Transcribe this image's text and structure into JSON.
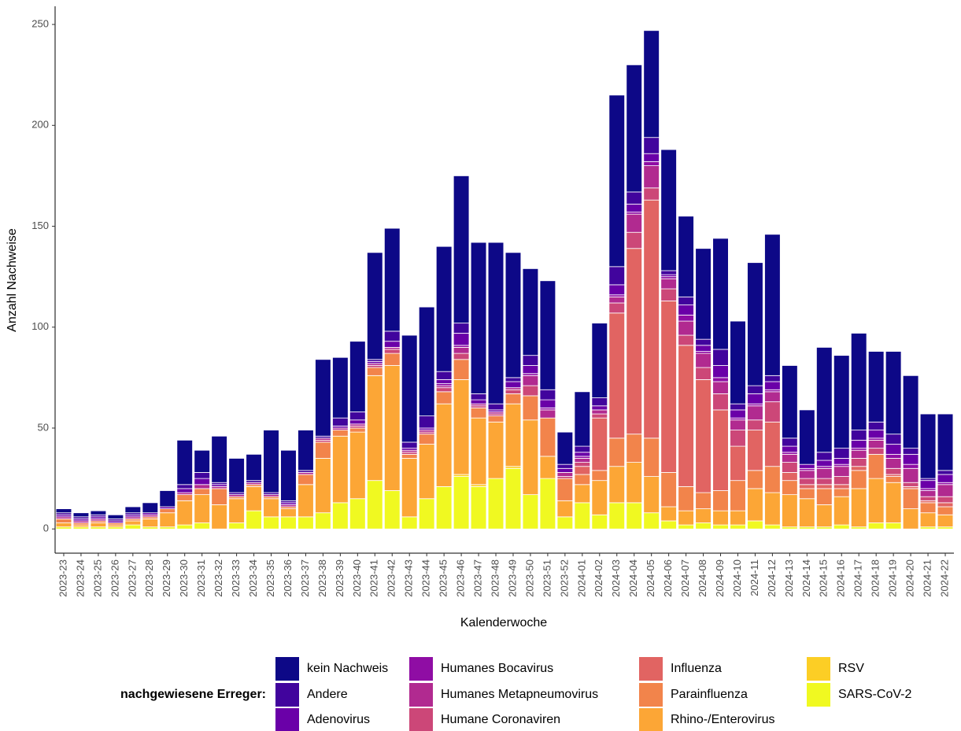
{
  "chart_data": {
    "type": "stacked-bar",
    "x_label": "Kalenderwoche",
    "y_label": "Anzahl Nachweise",
    "legend_title": "nachgewiesene Erreger:",
    "legend_position": "bottom",
    "categories": [
      "2023-23",
      "2023-24",
      "2023-25",
      "2023-26",
      "2023-27",
      "2023-28",
      "2023-29",
      "2023-30",
      "2023-31",
      "2023-32",
      "2023-33",
      "2023-34",
      "2023-35",
      "2023-36",
      "2023-37",
      "2023-38",
      "2023-39",
      "2023-40",
      "2023-41",
      "2023-42",
      "2023-43",
      "2023-44",
      "2023-45",
      "2023-46",
      "2023-47",
      "2023-48",
      "2023-49",
      "2023-50",
      "2023-51",
      "2023-52",
      "2024-01",
      "2024-02",
      "2024-03",
      "2024-04",
      "2024-05",
      "2024-06",
      "2024-07",
      "2024-08",
      "2024-09",
      "2024-10",
      "2024-11",
      "2024-12",
      "2024-13",
      "2024-14",
      "2024-15",
      "2024-16",
      "2024-17",
      "2024-18",
      "2024-19",
      "2024-20",
      "2024-21",
      "2024-22"
    ],
    "ylim": [
      -12,
      259
    ],
    "yticks": [
      0,
      50,
      100,
      150,
      200,
      250
    ],
    "series": [
      {
        "name": "kein Nachweis",
        "color": "#0D0887",
        "values": [
          2,
          2,
          2,
          2,
          3,
          5,
          8,
          22,
          11,
          23,
          17,
          13,
          31,
          25,
          20,
          38,
          30,
          35,
          53,
          51,
          53,
          54,
          62,
          73,
          75,
          80,
          62,
          43,
          54,
          16,
          27,
          37,
          85,
          63,
          53,
          60,
          40,
          45,
          55,
          41,
          61,
          70,
          36,
          27,
          52,
          46,
          48,
          35,
          41,
          36,
          32,
          28
        ]
      },
      {
        "name": "Andere",
        "color": "#41049D",
        "values": [
          1,
          1,
          1,
          1,
          1,
          0,
          0,
          2,
          3,
          1,
          1,
          1,
          1,
          1,
          1,
          1,
          4,
          4,
          1,
          5,
          3,
          6,
          4,
          5,
          3,
          3,
          2,
          5,
          5,
          2,
          3,
          4,
          9,
          6,
          8,
          2,
          4,
          3,
          8,
          3,
          4,
          3,
          4,
          0,
          4,
          5,
          5,
          4,
          5,
          3,
          1,
          2
        ]
      },
      {
        "name": "Adenovirus",
        "color": "#6A00A8",
        "values": [
          1,
          1,
          1,
          1,
          1,
          1,
          1,
          2,
          3,
          1,
          0,
          0,
          0,
          1,
          0,
          0,
          1,
          2,
          1,
          3,
          1,
          1,
          2,
          6,
          2,
          1,
          3,
          4,
          4,
          2,
          2,
          2,
          5,
          4,
          4,
          1,
          5,
          3,
          6,
          4,
          5,
          4,
          3,
          2,
          3,
          3,
          4,
          4,
          5,
          5,
          4,
          4
        ]
      },
      {
        "name": "Humanes Bocavirus",
        "color": "#8F0DA4",
        "values": [
          0,
          0,
          0,
          0,
          0,
          0,
          0,
          0,
          0,
          0,
          0,
          0,
          0,
          0,
          0,
          0,
          0,
          0,
          0,
          0,
          0,
          0,
          1,
          1,
          0,
          0,
          0,
          1,
          1,
          0,
          1,
          0,
          1,
          1,
          2,
          1,
          3,
          1,
          2,
          1,
          1,
          1,
          1,
          1,
          1,
          1,
          1,
          1,
          2,
          2,
          1,
          1
        ]
      },
      {
        "name": "Humanes Metapneumovirus",
        "color": "#B12A90",
        "values": [
          1,
          1,
          1,
          0,
          1,
          1,
          0,
          1,
          2,
          1,
          1,
          1,
          1,
          1,
          1,
          1,
          1,
          1,
          1,
          1,
          1,
          1,
          1,
          3,
          1,
          1,
          1,
          5,
          4,
          2,
          2,
          2,
          3,
          9,
          11,
          5,
          7,
          7,
          6,
          5,
          7,
          5,
          4,
          4,
          5,
          5,
          4,
          4,
          5,
          7,
          3,
          6
        ]
      },
      {
        "name": "Humane Coronaviren",
        "color": "#CC4778",
        "values": [
          0,
          0,
          0,
          0,
          0,
          0,
          0,
          0,
          0,
          0,
          0,
          0,
          0,
          0,
          0,
          1,
          0,
          1,
          1,
          2,
          1,
          1,
          2,
          3,
          1,
          1,
          2,
          5,
          0,
          1,
          2,
          2,
          5,
          8,
          6,
          6,
          5,
          6,
          8,
          8,
          5,
          10,
          5,
          3,
          3,
          4,
          4,
          3,
          3,
          2,
          2,
          3
        ]
      },
      {
        "name": "Influenza",
        "color": "#E16462",
        "values": [
          0,
          0,
          0,
          0,
          0,
          0,
          0,
          0,
          0,
          0,
          0,
          0,
          0,
          0,
          0,
          0,
          0,
          0,
          0,
          0,
          0,
          0,
          0,
          0,
          0,
          0,
          0,
          0,
          0,
          0,
          4,
          26,
          62,
          92,
          118,
          85,
          70,
          56,
          40,
          17,
          20,
          22,
          4,
          2,
          2,
          2,
          2,
          0,
          1,
          1,
          1,
          2
        ]
      },
      {
        "name": "Parainfluenza",
        "color": "#F2844B",
        "values": [
          2,
          1,
          1,
          1,
          1,
          1,
          2,
          3,
          3,
          8,
          1,
          1,
          1,
          1,
          5,
          8,
          3,
          2,
          4,
          6,
          2,
          5,
          6,
          10,
          5,
          3,
          5,
          12,
          19,
          11,
          5,
          5,
          14,
          14,
          19,
          17,
          12,
          8,
          10,
          15,
          9,
          13,
          7,
          5,
          8,
          4,
          9,
          12,
          3,
          10,
          5,
          4
        ]
      },
      {
        "name": "Rhino-/Enterovirus",
        "color": "#FCA636",
        "values": [
          2,
          1,
          2,
          1,
          2,
          4,
          7,
          12,
          14,
          12,
          12,
          12,
          9,
          4,
          16,
          27,
          33,
          33,
          52,
          62,
          29,
          27,
          41,
          47,
          33,
          28,
          31,
          37,
          11,
          8,
          9,
          17,
          18,
          20,
          18,
          7,
          7,
          7,
          7,
          7,
          16,
          16,
          16,
          14,
          11,
          14,
          19,
          22,
          20,
          10,
          7,
          6
        ]
      },
      {
        "name": "RSV",
        "color": "#FCCE25",
        "values": [
          0,
          0,
          0,
          0,
          0,
          0,
          0,
          0,
          0,
          0,
          0,
          0,
          0,
          0,
          0,
          0,
          0,
          0,
          0,
          0,
          0,
          0,
          0,
          1,
          1,
          0,
          1,
          0,
          0,
          0,
          0,
          0,
          0,
          0,
          0,
          0,
          0,
          0,
          0,
          0,
          0,
          0,
          0,
          0,
          0,
          0,
          0,
          0,
          0,
          0,
          0,
          0
        ]
      },
      {
        "name": "SARS-CoV-2",
        "color": "#F0F921",
        "values": [
          1,
          1,
          1,
          1,
          2,
          1,
          1,
          2,
          3,
          0,
          3,
          9,
          6,
          6,
          6,
          8,
          13,
          15,
          24,
          19,
          6,
          15,
          21,
          26,
          21,
          25,
          30,
          17,
          25,
          6,
          13,
          7,
          13,
          13,
          8,
          4,
          2,
          3,
          2,
          2,
          4,
          2,
          1,
          1,
          1,
          2,
          1,
          3,
          3,
          0,
          1,
          1
        ]
      }
    ]
  }
}
